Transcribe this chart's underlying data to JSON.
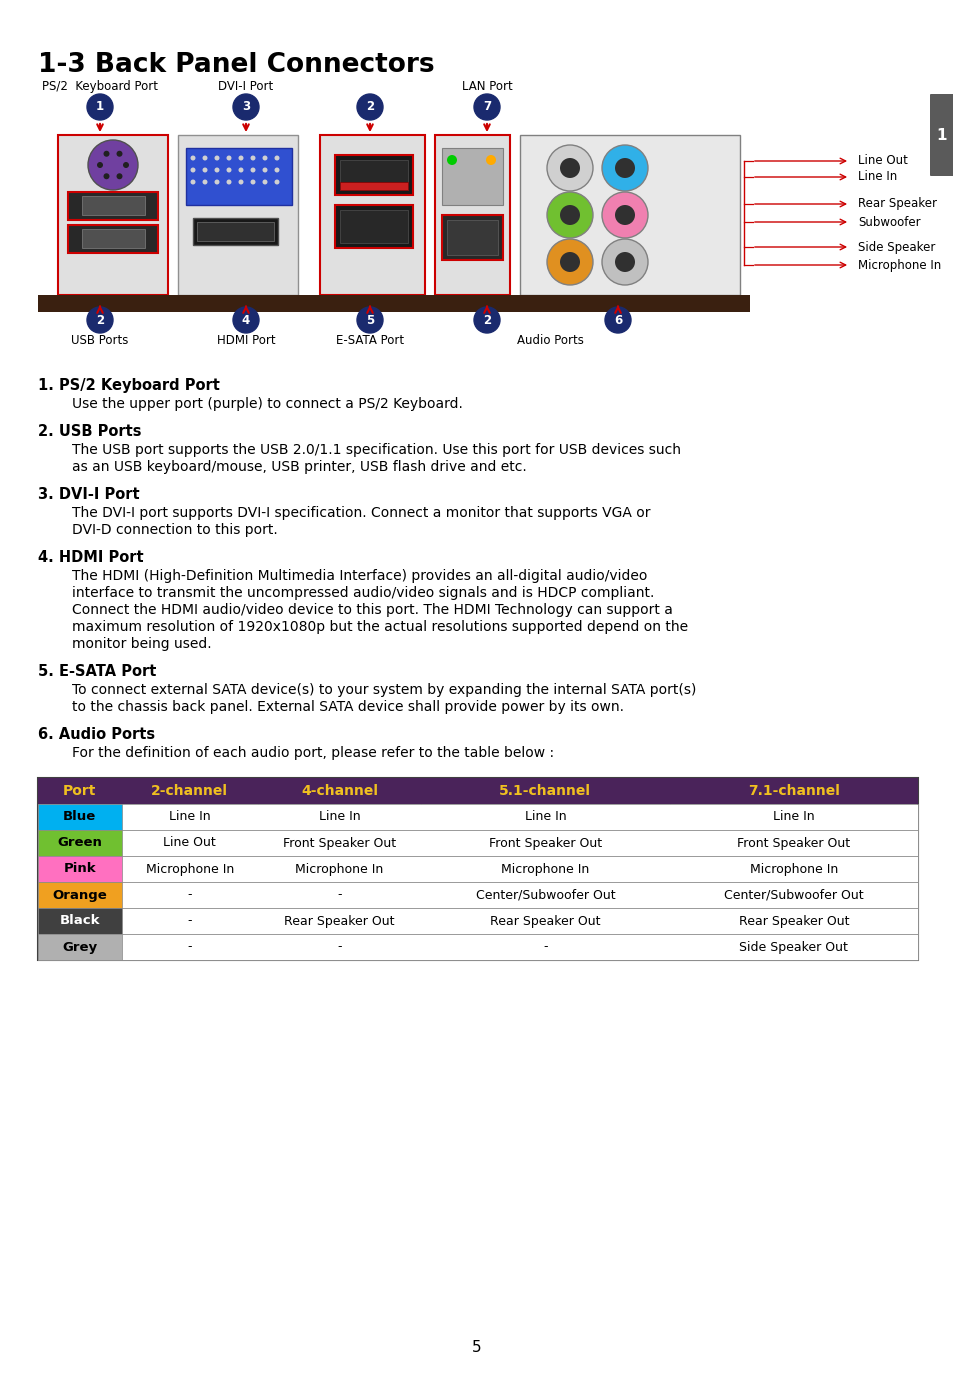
{
  "title": "1-3 Back Panel Connectors",
  "bg_color": "#ffffff",
  "header_color": "#4a235a",
  "header_text_color": "#f0c020",
  "page_number": "5",
  "tab_color": "#5a5a5a",
  "sections": [
    {
      "number": "1",
      "heading": "PS/2 Keyboard Port",
      "body": "Use the upper port (purple) to connect a PS/2 Keyboard."
    },
    {
      "number": "2",
      "heading": "USB Ports",
      "body": "The USB port supports the USB 2.0/1.1 specification. Use this port for USB devices such as an USB keyboard/mouse, USB printer, USB flash drive and etc."
    },
    {
      "number": "3",
      "heading": "DVI-I Port",
      "body": "The DVI-I port supports DVI-I specification. Connect a monitor that supports VGA or DVI-D connection to this port."
    },
    {
      "number": "4",
      "heading": "HDMI Port",
      "body": "The HDMI (High-Definition Multimedia Interface) provides an all-digital audio/video interface to transmit the uncompressed audio/video signals and is HDCP compliant. Connect the HDMI audio/video device to this port. The HDMI Technology can support a maximum resolution of 1920x1080p but the actual resolutions supported depend on the monitor being used."
    },
    {
      "number": "5",
      "heading": "E-SATA Port",
      "body": "To connect external SATA device(s) to your system by expanding the internal SATA port(s) to the chassis back panel. External SATA device shall provide power by its own."
    },
    {
      "number": "6",
      "heading": "Audio Ports",
      "body": "For the definition of each audio port, please refer to the table below :"
    }
  ],
  "table_headers": [
    "Port",
    "2-channel",
    "4-channel",
    "5.1-channel",
    "7.1-channel"
  ],
  "table_rows": [
    [
      "Blue",
      "Line In",
      "Line In",
      "Line In",
      "Line In"
    ],
    [
      "Green",
      "Line Out",
      "Front Speaker Out",
      "Front Speaker Out",
      "Front Speaker Out"
    ],
    [
      "Pink",
      "Microphone In",
      "Microphone In",
      "Microphone In",
      "Microphone In"
    ],
    [
      "Orange",
      "-",
      "-",
      "Center/Subwoofer Out",
      "Center/Subwoofer Out"
    ],
    [
      "Black",
      "-",
      "Rear Speaker Out",
      "Rear Speaker Out",
      "Rear Speaker Out"
    ],
    [
      "Grey",
      "-",
      "-",
      "-",
      "Side Speaker Out"
    ]
  ],
  "port_colors": {
    "Blue": "#00b0f0",
    "Green": "#70c030",
    "Pink": "#ff70c0",
    "Orange": "#f0a020",
    "Black": "#404040",
    "Grey": "#b0b0b0"
  },
  "audio_labels": [
    "Line Out",
    "Line In",
    "Rear Speaker",
    "Subwoofer",
    "Side Speaker",
    "Microphone In"
  ],
  "badge_color": "#1a2a6e",
  "badge_text_color": "#ffffff"
}
